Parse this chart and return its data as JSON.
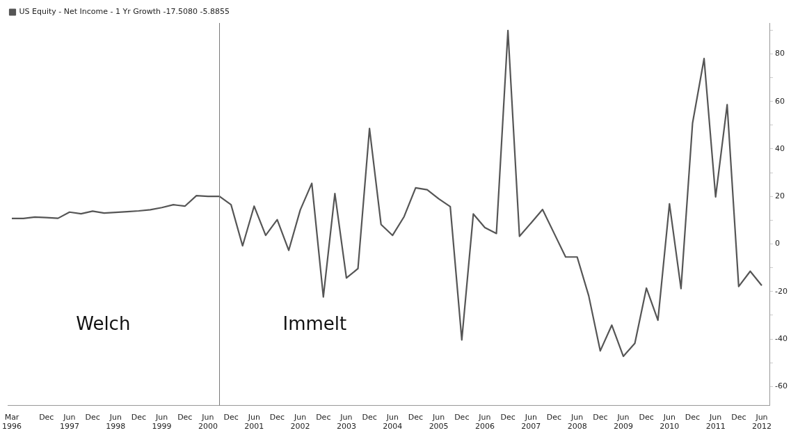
{
  "chart_data": {
    "type": "line",
    "x": [
      "1996-03",
      "1996-06",
      "1996-09",
      "1996-12",
      "1997-03",
      "1997-06",
      "1997-09",
      "1997-12",
      "1998-03",
      "1998-06",
      "1998-09",
      "1998-12",
      "1999-03",
      "1999-06",
      "1999-09",
      "1999-12",
      "2000-03",
      "2000-06",
      "2000-09",
      "2000-12",
      "2001-03",
      "2001-06",
      "2001-09",
      "2001-12",
      "2002-03",
      "2002-06",
      "2002-09",
      "2002-12",
      "2003-03",
      "2003-06",
      "2003-09",
      "2003-12",
      "2004-03",
      "2004-06",
      "2004-09",
      "2004-12",
      "2005-03",
      "2005-06",
      "2005-09",
      "2005-12",
      "2006-03",
      "2006-06",
      "2006-09",
      "2006-12",
      "2007-03",
      "2007-06",
      "2007-09",
      "2007-12",
      "2008-03",
      "2008-06",
      "2008-09",
      "2008-12",
      "2009-03",
      "2009-06",
      "2009-09",
      "2009-12",
      "2010-03",
      "2010-06",
      "2010-09",
      "2010-12",
      "2011-03",
      "2011-06",
      "2011-09",
      "2011-12",
      "2012-03",
      "2012-06"
    ],
    "series": [
      {
        "name": "US Equity - Net Income - 1 Yr Growth -17.5080 -5.8855",
        "color": "#555555",
        "values": [
          10.7,
          10.7,
          11.3,
          11.1,
          10.8,
          13.4,
          12.7,
          13.8,
          13,
          13.3,
          13.6,
          13.9,
          14.4,
          15.3,
          16.5,
          15.9,
          20.3,
          20,
          20,
          16.5,
          -0.8,
          15.9,
          3.6,
          10.2,
          -2.7,
          14.3,
          25.5,
          -22.3,
          21.2,
          -14.3,
          -10.4,
          48.6,
          8.2,
          3.6,
          11.5,
          23.6,
          22.8,
          19,
          15.7,
          -40.4,
          12.6,
          6.9,
          4.4,
          89.8,
          3.2,
          8.8,
          14.5,
          4.5,
          -5.5,
          -5.5,
          -21.8,
          -45,
          -34.2,
          -47.3,
          -41.8,
          -18.6,
          -32.1,
          16.9,
          -18.8,
          50.8,
          78,
          19.8,
          58.6,
          -17.9,
          -11.5,
          -17.5
        ]
      }
    ],
    "xlim": [
      "1996-02",
      "2012-08"
    ],
    "xticks": [
      {
        "value": "1996-03",
        "label": "Mar\n1996"
      },
      {
        "value": "1996-12",
        "label": "Dec"
      },
      {
        "value": "1997-06",
        "label": "Jun\n1997"
      },
      {
        "value": "1997-12",
        "label": "Dec"
      },
      {
        "value": "1998-06",
        "label": "Jun\n1998"
      },
      {
        "value": "1998-12",
        "label": "Dec"
      },
      {
        "value": "1999-06",
        "label": "Jun\n1999"
      },
      {
        "value": "1999-12",
        "label": "Dec"
      },
      {
        "value": "2000-06",
        "label": "Jun\n2000"
      },
      {
        "value": "2000-12",
        "label": "Dec"
      },
      {
        "value": "2001-06",
        "label": "Jun\n2001"
      },
      {
        "value": "2001-12",
        "label": "Dec"
      },
      {
        "value": "2002-06",
        "label": "Jun\n2002"
      },
      {
        "value": "2002-12",
        "label": "Dec"
      },
      {
        "value": "2003-06",
        "label": "Jun\n2003"
      },
      {
        "value": "2003-12",
        "label": "Dec"
      },
      {
        "value": "2004-06",
        "label": "Jun\n2004"
      },
      {
        "value": "2004-12",
        "label": "Dec"
      },
      {
        "value": "2005-06",
        "label": "Jun\n2005"
      },
      {
        "value": "2005-12",
        "label": "Dec"
      },
      {
        "value": "2006-06",
        "label": "Jun\n2006"
      },
      {
        "value": "2006-12",
        "label": "Dec"
      },
      {
        "value": "2007-06",
        "label": "Jun\n2007"
      },
      {
        "value": "2007-12",
        "label": "Dec"
      },
      {
        "value": "2008-06",
        "label": "Jun\n2008"
      },
      {
        "value": "2008-12",
        "label": "Dec"
      },
      {
        "value": "2009-06",
        "label": "Jun\n2009"
      },
      {
        "value": "2009-12",
        "label": "Dec"
      },
      {
        "value": "2010-06",
        "label": "Jun\n2010"
      },
      {
        "value": "2010-12",
        "label": "Dec"
      },
      {
        "value": "2011-06",
        "label": "Jun\n2011"
      },
      {
        "value": "2011-12",
        "label": "Dec"
      },
      {
        "value": "2012-06",
        "label": "Jun\n2012"
      }
    ],
    "ylim": [
      -68,
      93
    ],
    "yticks": [
      {
        "value": -60,
        "label": "-60"
      },
      {
        "value": -50,
        "label": null
      },
      {
        "value": -40,
        "label": "-40"
      },
      {
        "value": -30,
        "label": null
      },
      {
        "value": -20,
        "label": "-20"
      },
      {
        "value": -10,
        "label": null
      },
      0,
      {
        "value": 10,
        "label": null
      },
      20,
      {
        "value": 30,
        "label": null
      },
      40,
      {
        "value": 50,
        "label": null
      },
      60,
      {
        "value": 70,
        "label": null
      },
      80,
      {
        "value": 90,
        "label": null
      }
    ],
    "ref_lines": [
      {
        "axis": "x",
        "value": "2000-09",
        "color": "#777777"
      }
    ],
    "annotations": [
      "Welch",
      "Immelt"
    ],
    "legend": "top left",
    "grid": false,
    "marker": "none",
    "line_style": "solid"
  }
}
